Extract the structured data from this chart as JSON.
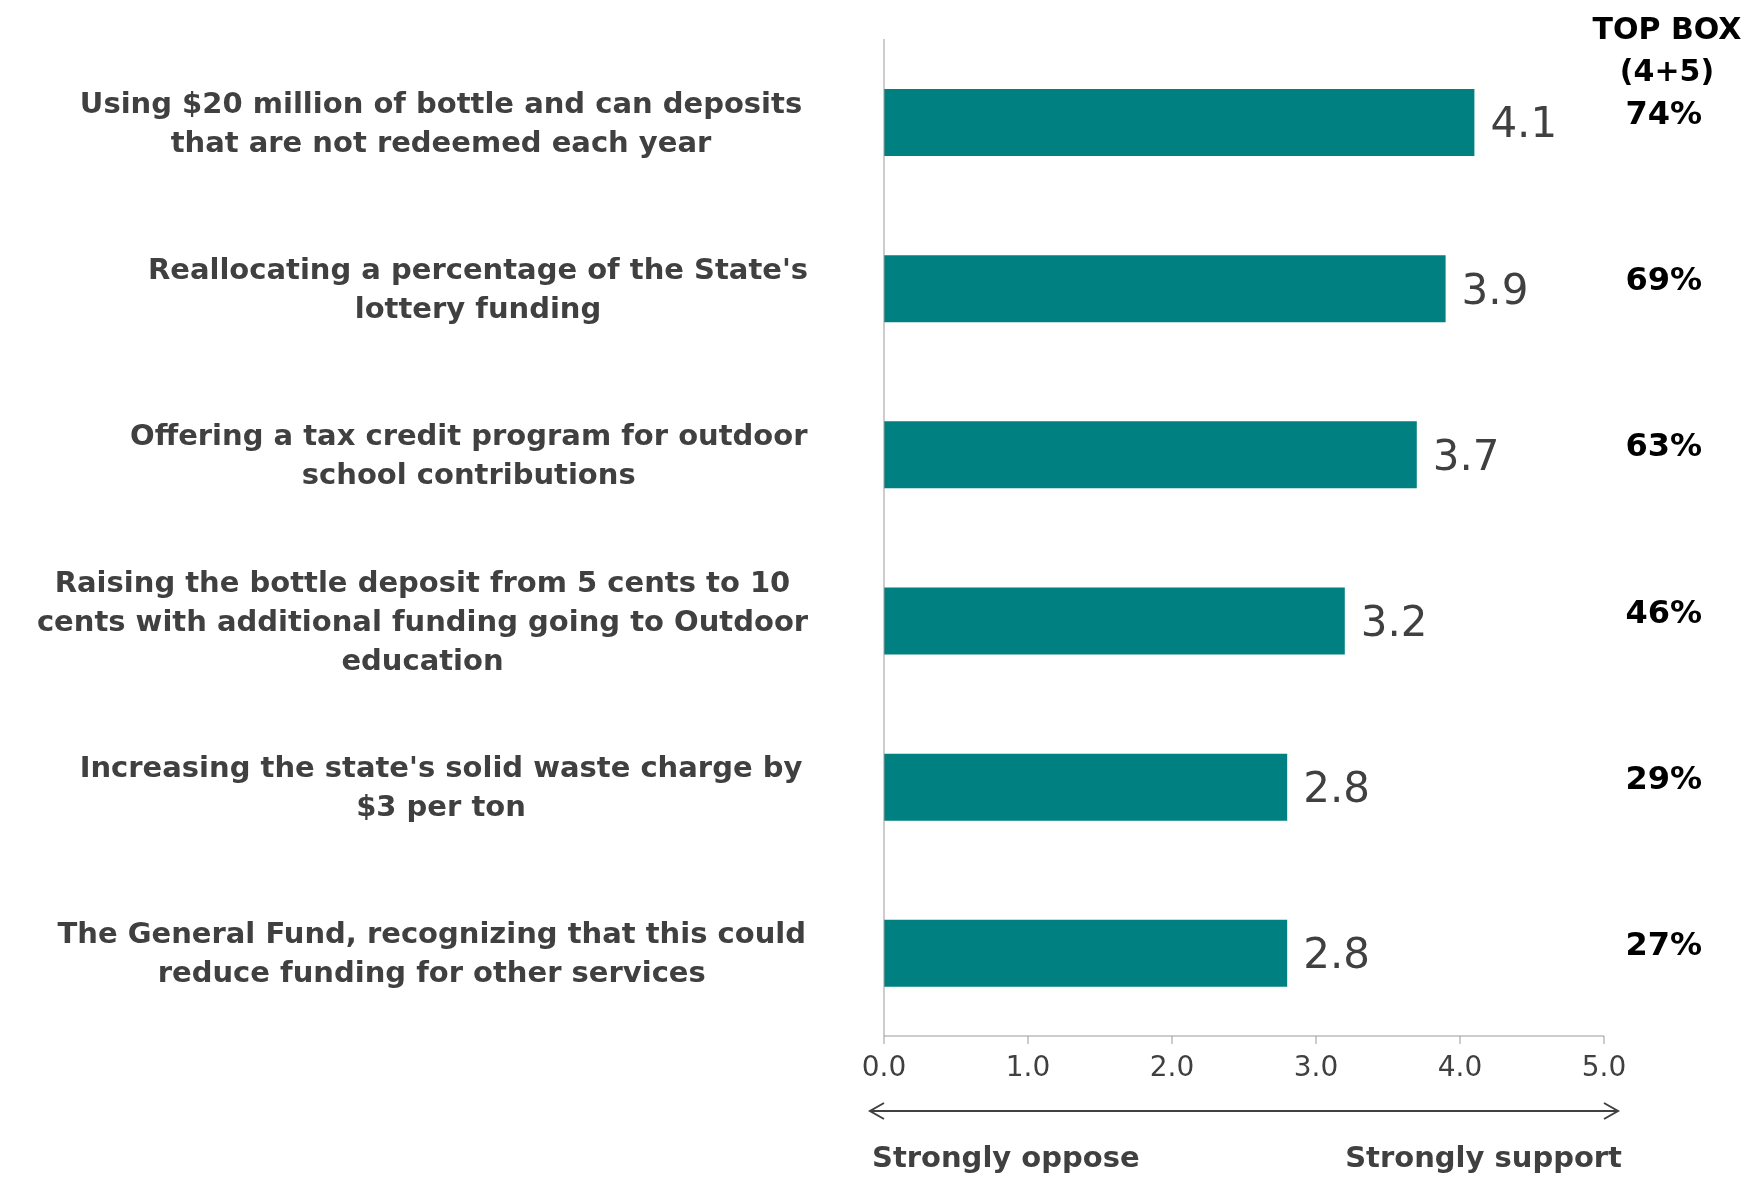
{
  "chart_data": {
    "type": "bar",
    "orientation": "horizontal",
    "categories": [
      "Using $20 million of bottle and can deposits that are not redeemed each year",
      "Reallocating a percentage of the State's lottery funding",
      "Offering a tax credit program for outdoor school contributions",
      "Raising the bottle deposit from 5 cents to 10 cents with additional funding going to Outdoor education",
      "Increasing the state's solid waste charge by $3 per ton",
      "The General Fund, recognizing that this could reduce funding for other services"
    ],
    "values": [
      4.1,
      3.9,
      3.7,
      3.2,
      2.8,
      2.8
    ],
    "color": "#008080",
    "data_labels": true,
    "xlim": [
      0,
      5
    ],
    "xticks": [
      {
        "value": 0,
        "label": "0.0"
      },
      {
        "value": 1,
        "label": "1.0"
      },
      {
        "value": 2,
        "label": "2.0"
      },
      {
        "value": 3,
        "label": "3.0"
      },
      {
        "value": 4,
        "label": "4.0"
      },
      {
        "value": 5,
        "label": "5.0"
      }
    ],
    "grid": false,
    "legend": false,
    "annotations": [
      "TOP BOX (4+5)",
      "74%",
      "69%",
      "63%",
      "46%",
      "29%",
      "27%",
      "Strongly oppose",
      "Strongly support"
    ]
  }
}
